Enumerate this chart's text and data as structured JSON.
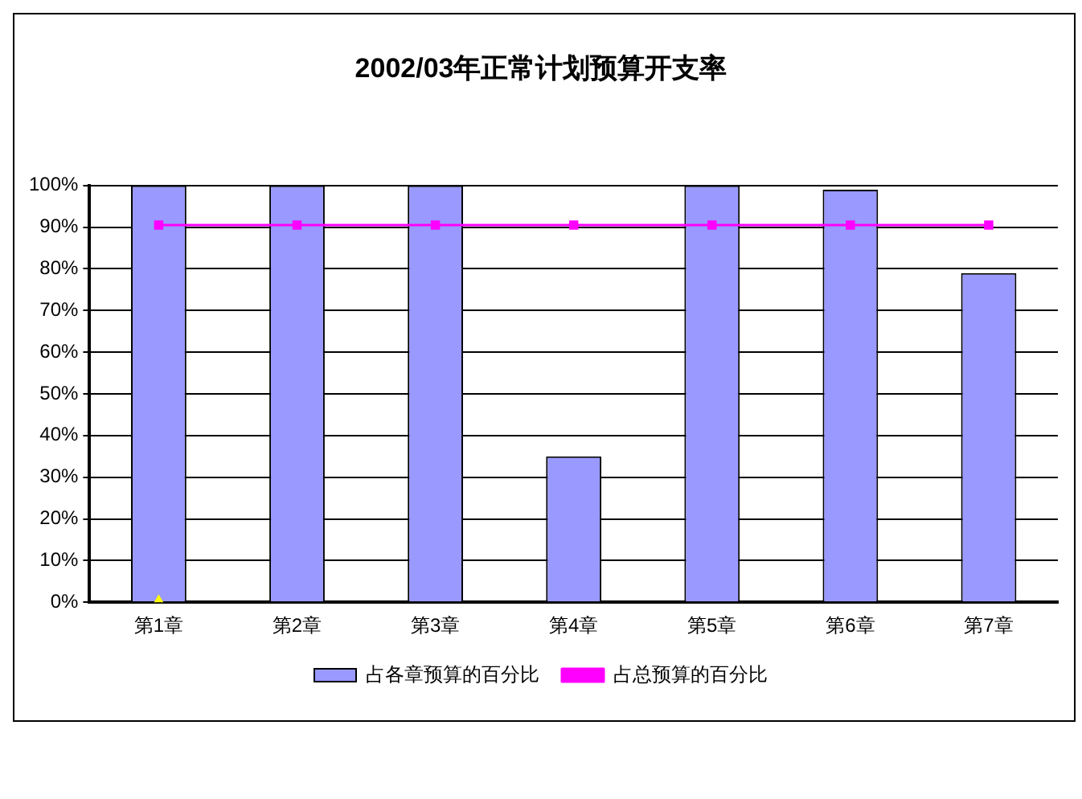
{
  "chart_data": {
    "type": "bar",
    "title": "2002/03年正常计划预算开支率",
    "categories": [
      "第1章",
      "第2章",
      "第3章",
      "第4章",
      "第5章",
      "第6章",
      "第7章"
    ],
    "series": [
      {
        "name": "占各章预算的百分比",
        "color": "#9999ff",
        "values": [
          100,
          100,
          100,
          35,
          100,
          99,
          79
        ]
      },
      {
        "name": "占总预算的百分比",
        "type": "line",
        "color": "#ff00ff",
        "marker": "square",
        "values": [
          90.5,
          90.5,
          90.5,
          90.5,
          90.5,
          90.5,
          90.5
        ]
      },
      {
        "type": "scatter",
        "color": "#ffff00",
        "marker": "triangle",
        "values": [
          0,
          null,
          null,
          null,
          null,
          null,
          null
        ]
      }
    ],
    "ylim": [
      0,
      100
    ],
    "yticks": [
      {
        "value": 0,
        "label": "0%"
      },
      {
        "value": 10,
        "label": "10%"
      },
      {
        "value": 20,
        "label": "20%"
      },
      {
        "value": 30,
        "label": "30%"
      },
      {
        "value": 40,
        "label": "40%"
      },
      {
        "value": 50,
        "label": "50%"
      },
      {
        "value": 60,
        "label": "60%"
      },
      {
        "value": 70,
        "label": "70%"
      },
      {
        "value": 80,
        "label": "80%"
      },
      {
        "value": 90,
        "label": "90%"
      },
      {
        "value": 100,
        "label": "100%"
      }
    ],
    "grid": "y",
    "legend": "bottom"
  }
}
